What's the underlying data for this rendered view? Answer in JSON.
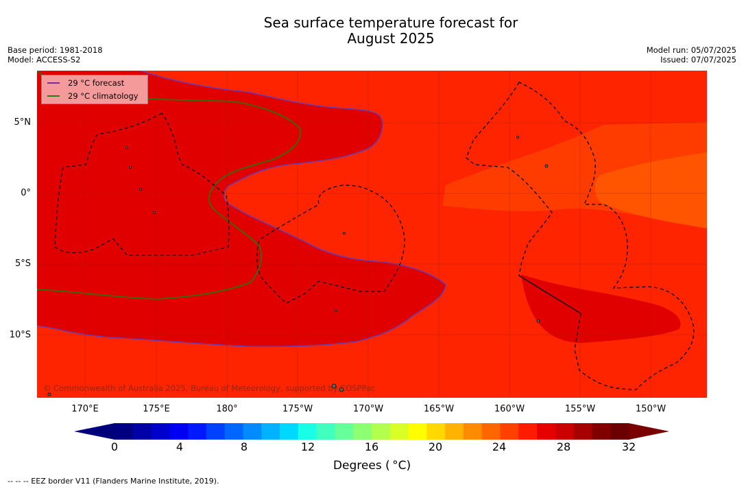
{
  "title": {
    "line1": "Sea surface temperature forecast for",
    "line2": "August 2025"
  },
  "meta_left": {
    "base_period": "Base period: 1981-2018",
    "model": "Model: ACCESS-S2"
  },
  "meta_right": {
    "model_run": "Model run: 05/07/2025",
    "issued": "Issued: 07/07/2025"
  },
  "legend": {
    "forecast_label": "29 °C  forecast",
    "forecast_color": "#7a2c8c",
    "climatology_label": "29 °C  climatology",
    "climatology_color": "#2a7a14"
  },
  "axes": {
    "longitude_labels": [
      "170°E",
      "175°E",
      "180°",
      "175°W",
      "170°W",
      "165°W",
      "160°W",
      "155°W",
      "150°W"
    ],
    "latitude_labels": [
      "5°N",
      "0°",
      "5°S",
      "10°S"
    ]
  },
  "colorbar": {
    "tick_labels": [
      "0",
      "4",
      "8",
      "12",
      "16",
      "20",
      "24",
      "28",
      "32"
    ],
    "label": "Degrees ( °C)",
    "colors": [
      "#000080",
      "#0000a6",
      "#0000cc",
      "#0000f2",
      "#0019ff",
      "#0040ff",
      "#0066ff",
      "#008cff",
      "#00b2ff",
      "#00d9ff",
      "#19ffe6",
      "#40ffbf",
      "#66ff99",
      "#8cff73",
      "#b2ff4d",
      "#d9ff26",
      "#ffff00",
      "#ffd900",
      "#ffb200",
      "#ff8c00",
      "#ff6600",
      "#ff4000",
      "#ff1a00",
      "#e60000",
      "#cc0000",
      "#a60000",
      "#800000",
      "#6a0000"
    ],
    "under_color": "#00007a",
    "over_color": "#7a0000"
  },
  "map_colors": {
    "base": "#ff2400",
    "warm_core": "#e00000",
    "cool_band": "#ff3c00",
    "cool_core": "#ff5400",
    "forecast_contour": "#6a3cb0",
    "climatology_contour": "#2f6e12",
    "eez": "#000000"
  },
  "copyright": "© Commonwealth of Australia 2025, Bureau of Meteorology, supported by COSPPac",
  "footer": "--  --  -- EEZ border V11 (Flanders Marine Institute, 2019)."
}
